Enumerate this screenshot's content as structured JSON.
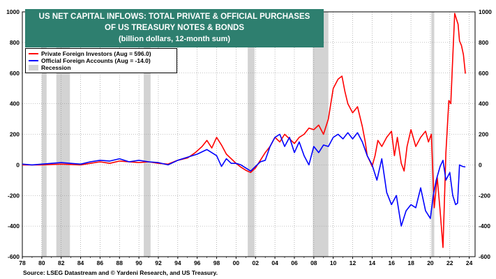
{
  "chart_data": {
    "type": "line",
    "title": "US NET CAPITAL INFLOWS: TOTAL PRIVATE & OFFICIAL PURCHASES",
    "title_line2": "OF US TREASURY NOTES & BONDS",
    "subtitle": "(billion dollars, 12-month sum)",
    "source": "Source: LSEG Datastream and © Yardeni Research, and US Treasury.",
    "xlabel": "",
    "ylabel": "",
    "xlim": [
      1978,
      2024.6
    ],
    "ylim": [
      -600,
      1000
    ],
    "x_ticks": [
      78,
      80,
      82,
      84,
      86,
      88,
      90,
      92,
      94,
      96,
      98,
      0,
      2,
      4,
      6,
      8,
      10,
      12,
      14,
      16,
      18,
      20,
      22,
      24
    ],
    "x_tick_labels": [
      "78",
      "80",
      "82",
      "84",
      "86",
      "88",
      "90",
      "92",
      "94",
      "96",
      "98",
      "00",
      "02",
      "04",
      "06",
      "08",
      "10",
      "12",
      "14",
      "16",
      "18",
      "20",
      "22",
      "24"
    ],
    "y_ticks": [
      -600,
      -400,
      -200,
      0,
      200,
      400,
      600,
      800,
      1000
    ],
    "y_tick_labels": [
      "-600",
      "-400",
      "-200",
      "0",
      "200",
      "400",
      "600",
      "800",
      "1000"
    ],
    "grid": "dotted",
    "legend_position": "top-left",
    "legend": [
      {
        "label": "Private Foreign Investors (Aug = 596.0)",
        "color": "#ff0000",
        "kind": "line"
      },
      {
        "label": "Official Foreign Accounts (Aug = -14.0)",
        "color": "#0000ff",
        "kind": "line"
      },
      {
        "label": "Recession",
        "color": "#d3d3d3",
        "kind": "band"
      }
    ],
    "recessions": [
      [
        1980.0,
        1980.5
      ],
      [
        1981.5,
        1982.9
      ],
      [
        1990.5,
        1991.2
      ],
      [
        2001.2,
        2001.9
      ],
      [
        2007.9,
        2009.5
      ],
      [
        2020.1,
        2020.4
      ]
    ],
    "series": [
      {
        "name": "Private Foreign Investors (Aug = 596.0)",
        "color": "#ff0000",
        "x": [
          1978.0,
          1980.0,
          1982.0,
          1984.0,
          1985.0,
          1986.0,
          1987.0,
          1988.0,
          1989.0,
          1990.0,
          1991.0,
          1992.0,
          1993.0,
          1994.0,
          1995.0,
          1995.8,
          1996.5,
          1997.0,
          1997.5,
          1998.0,
          1998.5,
          1999.0,
          2000.0,
          2000.5,
          2001.0,
          2001.5,
          2002.0,
          2002.5,
          2003.0,
          2003.5,
          2004.0,
          2004.5,
          2005.0,
          2005.5,
          2006.0,
          2006.5,
          2007.0,
          2007.5,
          2008.0,
          2008.5,
          2009.0,
          2009.5,
          2010.0,
          2010.5,
          2010.9,
          2011.2,
          2011.5,
          2012.0,
          2012.5,
          2013.0,
          2013.3,
          2013.5,
          2013.8,
          2014.0,
          2014.3,
          2014.6,
          2015.0,
          2015.5,
          2016.0,
          2016.3,
          2016.6,
          2017.0,
          2017.3,
          2017.6,
          2018.0,
          2018.5,
          2019.0,
          2019.5,
          2019.8,
          2020.1,
          2020.4,
          2020.7,
          2021.0,
          2021.3,
          2021.6,
          2021.9,
          2022.1,
          2022.3,
          2022.5,
          2022.7,
          2022.85,
          2023.0,
          2023.2,
          2023.4,
          2023.6
        ],
        "values": [
          0,
          0,
          5,
          0,
          10,
          20,
          10,
          25,
          20,
          15,
          20,
          10,
          5,
          30,
          45,
          80,
          120,
          160,
          110,
          180,
          130,
          70,
          10,
          -15,
          -35,
          -50,
          -20,
          30,
          80,
          120,
          180,
          150,
          200,
          170,
          140,
          180,
          200,
          240,
          230,
          260,
          200,
          300,
          500,
          560,
          580,
          480,
          400,
          340,
          380,
          250,
          150,
          60,
          20,
          -10,
          60,
          160,
          120,
          180,
          220,
          60,
          180,
          10,
          -40,
          120,
          230,
          120,
          180,
          220,
          150,
          200,
          -280,
          -80,
          -300,
          -540,
          80,
          420,
          400,
          700,
          990,
          950,
          920,
          810,
          780,
          720,
          596
        ]
      },
      {
        "name": "Official Foreign Accounts (Aug = -14.0)",
        "color": "#0000ff",
        "x": [
          1978.0,
          1979.0,
          1980.0,
          1981.0,
          1982.0,
          1983.0,
          1984.0,
          1985.0,
          1986.0,
          1987.0,
          1988.0,
          1989.0,
          1990.0,
          1991.0,
          1992.0,
          1993.0,
          1994.0,
          1995.0,
          1996.0,
          1997.0,
          1998.0,
          1998.5,
          1999.0,
          1999.5,
          2000.0,
          2000.5,
          2001.0,
          2001.5,
          2002.0,
          2002.5,
          2003.0,
          2003.5,
          2004.0,
          2004.5,
          2005.0,
          2005.5,
          2006.0,
          2006.5,
          2007.0,
          2007.5,
          2008.0,
          2008.5,
          2009.0,
          2009.5,
          2010.0,
          2010.5,
          2011.0,
          2011.5,
          2012.0,
          2012.5,
          2013.0,
          2013.5,
          2014.0,
          2014.5,
          2015.0,
          2015.5,
          2016.0,
          2016.5,
          2017.0,
          2017.5,
          2018.0,
          2018.5,
          2019.0,
          2019.5,
          2020.0,
          2020.3,
          2020.6,
          2021.0,
          2021.3,
          2021.6,
          2022.0,
          2022.3,
          2022.6,
          2022.8,
          2023.0,
          2023.3,
          2023.6
        ],
        "values": [
          5,
          0,
          5,
          10,
          15,
          10,
          5,
          20,
          30,
          25,
          40,
          20,
          30,
          20,
          15,
          0,
          30,
          50,
          70,
          100,
          60,
          -10,
          40,
          10,
          10,
          0,
          -20,
          -40,
          -10,
          20,
          30,
          120,
          180,
          200,
          120,
          180,
          80,
          150,
          60,
          0,
          120,
          80,
          130,
          120,
          180,
          200,
          170,
          210,
          170,
          210,
          150,
          60,
          0,
          -100,
          40,
          -180,
          -260,
          -200,
          -400,
          -300,
          -260,
          -280,
          -150,
          -300,
          -350,
          -200,
          -100,
          -10,
          30,
          -100,
          -50,
          -200,
          -260,
          -250,
          0,
          -10,
          -14
        ]
      }
    ]
  }
}
